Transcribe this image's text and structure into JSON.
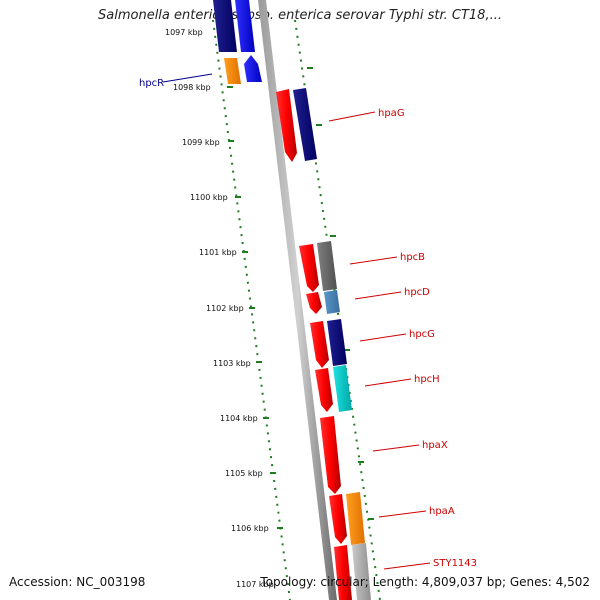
{
  "title": "Salmonella enterica subsp. enterica serovar Typhi str. CT18,...",
  "accession_label": "Accession: NC_003198",
  "summary_label": "Topology: circular; Length: 4,809,037 bp; Genes: 4,502",
  "ticks": [
    "1097 kbp",
    "1098 kbp",
    "1099 kbp",
    "1100 kbp",
    "1101 kbp",
    "1102 kbp",
    "1103 kbp",
    "1104 kbp",
    "1105 kbp",
    "1106 kbp",
    "1107 kbp"
  ],
  "genes": [
    {
      "label": "hpcR",
      "color": "#00008b"
    },
    {
      "label": "hpaG",
      "color": "#cc0000"
    },
    {
      "label": "hpcB",
      "color": "#cc0000"
    },
    {
      "label": "hpcD",
      "color": "#cc0000"
    },
    {
      "label": "hpcG",
      "color": "#cc0000"
    },
    {
      "label": "hpcH",
      "color": "#cc0000"
    },
    {
      "label": "hpaX",
      "color": "#cc0000"
    },
    {
      "label": "hpaA",
      "color": "#cc0000"
    },
    {
      "label": "STY1143",
      "color": "#cc0000"
    }
  ],
  "colors": {
    "forward_strand": "#ff0000",
    "navy": "#000080",
    "blue": "#0000ff",
    "orange": "#ff8c00",
    "gray": "#696969",
    "steelblue": "#4682b4",
    "cyan": "#00cccc",
    "silver": "#b0b0b0",
    "backbone": "#808080",
    "dotted_track": "#1e7d1e"
  }
}
